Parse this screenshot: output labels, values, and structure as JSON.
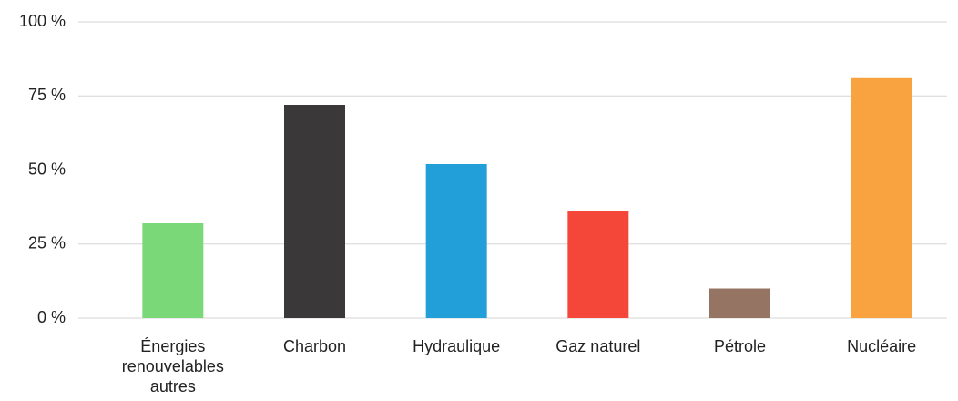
{
  "chart_data": {
    "type": "bar",
    "categories": [
      "Énergies renouvelables autres",
      "Charbon",
      "Hydraulique",
      "Gaz naturel",
      "Pétrole",
      "Nucléaire"
    ],
    "values": [
      32,
      72,
      52,
      36,
      10,
      81
    ],
    "colors": [
      "#7ad878",
      "#3a3839",
      "#229fd8",
      "#f4473a",
      "#957464",
      "#f8a33f"
    ],
    "ylim": [
      0,
      100
    ],
    "yticks": [
      {
        "value": 0,
        "label": "0 %"
      },
      {
        "value": 25,
        "label": "25 %"
      },
      {
        "value": 50,
        "label": "50 %"
      },
      {
        "value": 75,
        "label": "75 %"
      },
      {
        "value": 100,
        "label": "100 %"
      }
    ],
    "grid": true
  }
}
